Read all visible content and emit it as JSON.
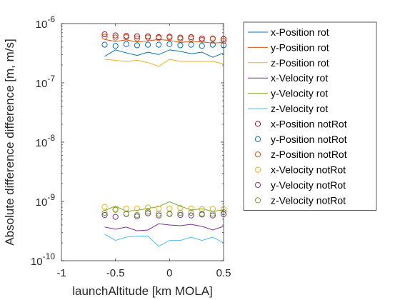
{
  "chart_data": {
    "type": "line",
    "xlabel": "launchAltitude [km MOLA]",
    "ylabel": "Absolute difference difference [m, m/s]",
    "xlim": [
      -1,
      0.5
    ],
    "ylim": [
      1e-10,
      1e-06
    ],
    "yscale": "log",
    "grid": false,
    "legend_position": "right",
    "x_ticks": [
      {
        "value": -1,
        "label": "-1"
      },
      {
        "value": -0.5,
        "label": "-0.5"
      },
      {
        "value": 0,
        "label": "0"
      },
      {
        "value": 0.5,
        "label": "0.5"
      }
    ],
    "y_ticks": [
      {
        "value": 1e-10,
        "base": "10",
        "exp": "-10"
      },
      {
        "value": 1e-09,
        "base": "10",
        "exp": "-9"
      },
      {
        "value": 1e-08,
        "base": "10",
        "exp": "-8"
      },
      {
        "value": 1e-07,
        "base": "10",
        "exp": "-7"
      },
      {
        "value": 1e-06,
        "base": "10",
        "exp": "-6"
      }
    ],
    "x": [
      -0.6,
      -0.5,
      -0.4,
      -0.3,
      -0.2,
      -0.1,
      0,
      0.1,
      0.2,
      0.3,
      0.4,
      0.5
    ],
    "series": [
      {
        "name": "x-Position rot",
        "style": "line",
        "color": "#0072BD",
        "values": [
          2.8e-07,
          3.6e-07,
          3.2e-07,
          2.9e-07,
          3.3e-07,
          3e-07,
          3.6e-07,
          3.4e-07,
          3.1e-07,
          3.3e-07,
          2.7e-07,
          3.2e-07
        ]
      },
      {
        "name": "y-Position rot",
        "style": "line",
        "color": "#D95319",
        "values": [
          5.4e-07,
          5e-07,
          5.3e-07,
          4.9e-07,
          5.1e-07,
          5.4e-07,
          5.2e-07,
          4.8e-07,
          5e-07,
          4.9e-07,
          4.7e-07,
          4.8e-07
        ]
      },
      {
        "name": "z-Position rot",
        "style": "line",
        "color": "#EDB120",
        "values": [
          2.5e-07,
          2.4e-07,
          2.3e-07,
          2.4e-07,
          2.2e-07,
          1.9e-07,
          2.5e-07,
          2.3e-07,
          2.3e-07,
          2.3e-07,
          2.3e-07,
          2.1e-07
        ]
      },
      {
        "name": "x-Velocity rot",
        "style": "line",
        "color": "#7E2F8E",
        "values": [
          3.7e-10,
          3.4e-10,
          3.7e-10,
          3.2e-10,
          3.3e-10,
          4.2e-10,
          4e-10,
          3.9e-10,
          4.1e-10,
          3.8e-10,
          3.3e-10,
          3.8e-10
        ]
      },
      {
        "name": "y-Velocity rot",
        "style": "line",
        "color": "#77AC30",
        "values": [
          7e-10,
          8.4e-10,
          6.8e-10,
          7.1e-10,
          7.6e-10,
          8.2e-10,
          9.9e-10,
          8.3e-10,
          7.2e-10,
          7.5e-10,
          6.8e-10,
          7.2e-10
        ]
      },
      {
        "name": "z-Velocity rot",
        "style": "line",
        "color": "#4DBEEE",
        "values": [
          2.8e-10,
          2.2e-10,
          2.5e-10,
          2.6e-10,
          2.6e-10,
          1.75e-10,
          2.2e-10,
          2.2e-10,
          2.5e-10,
          2.2e-10,
          2.5e-10,
          2e-10
        ]
      },
      {
        "name": "x-Position notRot",
        "style": "marker",
        "color": "#A2142F",
        "values": [
          6.6e-07,
          6.3e-07,
          6.2e-07,
          6.1e-07,
          6.1e-07,
          5.9e-07,
          6e-07,
          5.8e-07,
          5.9e-07,
          5.6e-07,
          5.6e-07,
          5.5e-07
        ]
      },
      {
        "name": "y-Position notRot",
        "style": "marker",
        "color": "#0072BD",
        "values": [
          4.4e-07,
          4.2e-07,
          4.5e-07,
          4.3e-07,
          4.4e-07,
          4.4e-07,
          4.5e-07,
          4.3e-07,
          4.4e-07,
          4.2e-07,
          4.4e-07,
          4.3e-07
        ]
      },
      {
        "name": "z-Position notRot",
        "style": "marker",
        "color": "#D95319",
        "values": [
          6e-07,
          5.8e-07,
          5.9e-07,
          5.6e-07,
          5.8e-07,
          5.7e-07,
          5.8e-07,
          5.5e-07,
          5.6e-07,
          5.3e-07,
          5.5e-07,
          5.1e-07
        ]
      },
      {
        "name": "x-Velocity notRot",
        "style": "marker",
        "color": "#EDB120",
        "values": [
          8.1e-10,
          7.4e-10,
          7.6e-10,
          7.6e-10,
          7.9e-10,
          7.6e-10,
          7.6e-10,
          7.8e-10,
          7.6e-10,
          7.4e-10,
          7.5e-10,
          7.4e-10
        ]
      },
      {
        "name": "y-Velocity notRot",
        "style": "marker",
        "color": "#7E2F8E",
        "values": [
          5.9e-10,
          5.5e-10,
          6.2e-10,
          5.6e-10,
          6.3e-10,
          5.8e-10,
          6.2e-10,
          5.9e-10,
          5.8e-10,
          6e-10,
          5.8e-10,
          6.1e-10
        ]
      },
      {
        "name": "z-Velocity notRot",
        "style": "marker",
        "color": "#77AC30",
        "values": [
          6.4e-10,
          7.2e-10,
          6.1e-10,
          5.9e-10,
          6.7e-10,
          6.2e-10,
          6.1e-10,
          6.4e-10,
          6.4e-10,
          6.2e-10,
          6.2e-10,
          6.6e-10
        ]
      }
    ]
  }
}
